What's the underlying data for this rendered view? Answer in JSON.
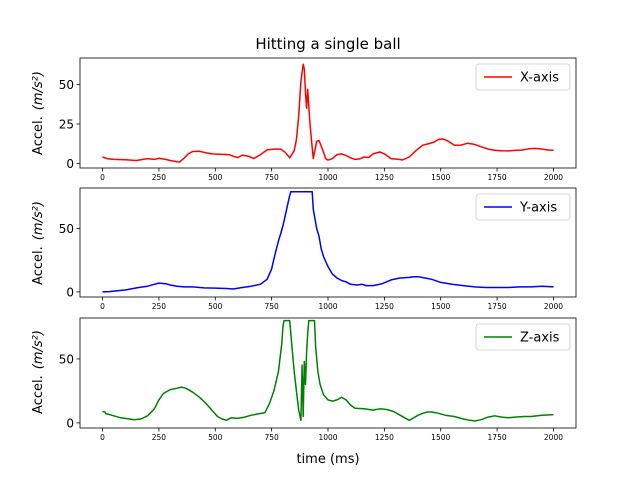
{
  "chart_data": {
    "type": "line",
    "title": "Hitting a single ball",
    "xlabel": "time (ms)",
    "x_ticks": [
      0,
      250,
      500,
      750,
      1000,
      1250,
      1500,
      1750,
      2000
    ],
    "subplots": [
      {
        "ylabel_main": "Accel.",
        "ylabel_unit": "(m/s²)",
        "ylim": [
          -3,
          67
        ],
        "y_ticks": [
          0,
          25,
          50
        ],
        "legend": "upper right",
        "series": [
          {
            "name": "X-axis",
            "color": "#ff0000",
            "points": [
              [
                0,
                4
              ],
              [
                20,
                3
              ],
              [
                50,
                2.5
              ],
              [
                100,
                2.3
              ],
              [
                150,
                1.8
              ],
              [
                200,
                3
              ],
              [
                230,
                2.5
              ],
              [
                250,
                3.2
              ],
              [
                280,
                2.5
              ],
              [
                300,
                1.8
              ],
              [
                330,
                1
              ],
              [
                340,
                0.7
              ],
              [
                360,
                3
              ],
              [
                380,
                6
              ],
              [
                400,
                7.5
              ],
              [
                430,
                7.6
              ],
              [
                460,
                6.6
              ],
              [
                490,
                5.9
              ],
              [
                520,
                5.7
              ],
              [
                560,
                5.5
              ],
              [
                580,
                4.5
              ],
              [
                600,
                3.6
              ],
              [
                620,
                5.2
              ],
              [
                650,
                4.4
              ],
              [
                670,
                3
              ],
              [
                700,
                5.5
              ],
              [
                730,
                8.5
              ],
              [
                760,
                9
              ],
              [
                790,
                9
              ],
              [
                810,
                7
              ],
              [
                830,
                3.5
              ],
              [
                850,
                8
              ],
              [
                860,
                15
              ],
              [
                870,
                30
              ],
              [
                880,
                52
              ],
              [
                890,
                63
              ],
              [
                895,
                60
              ],
              [
                900,
                45
              ],
              [
                905,
                35
              ],
              [
                910,
                47
              ],
              [
                920,
                25
              ],
              [
                930,
                10
              ],
              [
                935,
                3
              ],
              [
                940,
                7
              ],
              [
                950,
                14
              ],
              [
                960,
                14.5
              ],
              [
                970,
                11
              ],
              [
                980,
                7
              ],
              [
                990,
                3
              ],
              [
                1000,
                2
              ],
              [
                1020,
                3
              ],
              [
                1040,
                5.5
              ],
              [
                1060,
                6
              ],
              [
                1080,
                5
              ],
              [
                1100,
                3.5
              ],
              [
                1120,
                2.5
              ],
              [
                1140,
                2.8
              ],
              [
                1160,
                4
              ],
              [
                1180,
                3.6
              ],
              [
                1200,
                6
              ],
              [
                1230,
                7.2
              ],
              [
                1250,
                6
              ],
              [
                1280,
                3
              ],
              [
                1300,
                2.7
              ],
              [
                1320,
                2.4
              ],
              [
                1330,
                2.1
              ],
              [
                1360,
                4
              ],
              [
                1390,
                8
              ],
              [
                1420,
                11.5
              ],
              [
                1450,
                12.6
              ],
              [
                1470,
                13.5
              ],
              [
                1490,
                15.2
              ],
              [
                1510,
                15.5
              ],
              [
                1530,
                14.3
              ],
              [
                1560,
                11.5
              ],
              [
                1590,
                11.6
              ],
              [
                1620,
                12.8
              ],
              [
                1650,
                12
              ],
              [
                1680,
                10.5
              ],
              [
                1710,
                9
              ],
              [
                1740,
                8.3
              ],
              [
                1770,
                8
              ],
              [
                1800,
                7.9
              ],
              [
                1830,
                8.2
              ],
              [
                1860,
                8.4
              ],
              [
                1890,
                9.2
              ],
              [
                1920,
                9.5
              ],
              [
                1950,
                9
              ],
              [
                1980,
                8.4
              ],
              [
                2000,
                8.3
              ]
            ]
          }
        ]
      },
      {
        "ylabel_main": "Accel.",
        "ylabel_unit": "(m/s²)",
        "ylim": [
          -4,
          82
        ],
        "y_ticks": [
          0,
          50
        ],
        "legend": "upper right",
        "series": [
          {
            "name": "Y-axis",
            "color": "#0000ff",
            "points": [
              [
                0,
                0
              ],
              [
                30,
                0.3
              ],
              [
                60,
                0.8
              ],
              [
                100,
                1.5
              ],
              [
                130,
                2.5
              ],
              [
                160,
                3.5
              ],
              [
                200,
                4.5
              ],
              [
                230,
                6
              ],
              [
                250,
                7
              ],
              [
                280,
                6.5
              ],
              [
                300,
                5.5
              ],
              [
                330,
                4.5
              ],
              [
                360,
                4
              ],
              [
                400,
                4
              ],
              [
                450,
                3.2
              ],
              [
                500,
                3
              ],
              [
                550,
                2.7
              ],
              [
                580,
                2.3
              ],
              [
                620,
                3.5
              ],
              [
                660,
                4.5
              ],
              [
                700,
                6
              ],
              [
                730,
                10
              ],
              [
                750,
                18
              ],
              [
                760,
                26
              ],
              [
                770,
                33
              ],
              [
                780,
                40
              ],
              [
                790,
                46
              ],
              [
                800,
                52
              ],
              [
                810,
                60
              ],
              [
                820,
                68
              ],
              [
                830,
                76
              ],
              [
                835,
                79
              ],
              [
                930,
                79
              ],
              [
                935,
                65
              ],
              [
                945,
                55
              ],
              [
                950,
                50
              ],
              [
                960,
                44
              ],
              [
                970,
                34
              ],
              [
                980,
                28
              ],
              [
                990,
                24
              ],
              [
                1000,
                20
              ],
              [
                1020,
                14
              ],
              [
                1040,
                11
              ],
              [
                1060,
                9
              ],
              [
                1080,
                8
              ],
              [
                1100,
                6
              ],
              [
                1130,
                5.5
              ],
              [
                1150,
                6
              ],
              [
                1170,
                5
              ],
              [
                1200,
                5
              ],
              [
                1240,
                6.5
              ],
              [
                1280,
                9.5
              ],
              [
                1320,
                11
              ],
              [
                1360,
                11.5
              ],
              [
                1380,
                12
              ],
              [
                1400,
                12
              ],
              [
                1430,
                11
              ],
              [
                1460,
                10
              ],
              [
                1500,
                7.5
              ],
              [
                1550,
                6
              ],
              [
                1600,
                5
              ],
              [
                1650,
                4
              ],
              [
                1700,
                3.5
              ],
              [
                1750,
                3.5
              ],
              [
                1800,
                3.5
              ],
              [
                1850,
                4
              ],
              [
                1900,
                4
              ],
              [
                1950,
                4.5
              ],
              [
                2000,
                4
              ]
            ]
          }
        ]
      },
      {
        "ylabel_main": "Accel.",
        "ylabel_unit": "(m/s²)",
        "ylim": [
          -4,
          82
        ],
        "y_ticks": [
          0,
          50
        ],
        "legend": "upper right",
        "series": [
          {
            "name": "Z-axis",
            "color": "#008000",
            "points": [
              [
                0,
                9
              ],
              [
                10,
                8.5
              ],
              [
                15,
                7
              ],
              [
                20,
                7
              ],
              [
                40,
                6
              ],
              [
                80,
                4
              ],
              [
                120,
                3
              ],
              [
                140,
                2.5
              ],
              [
                170,
                3
              ],
              [
                200,
                5.5
              ],
              [
                230,
                11
              ],
              [
                250,
                18
              ],
              [
                270,
                23
              ],
              [
                300,
                26
              ],
              [
                330,
                27
              ],
              [
                350,
                28
              ],
              [
                370,
                27
              ],
              [
                400,
                24
              ],
              [
                430,
                20
              ],
              [
                460,
                15
              ],
              [
                490,
                9
              ],
              [
                510,
                5
              ],
              [
                530,
                3
              ],
              [
                550,
                2
              ],
              [
                570,
                4
              ],
              [
                600,
                3.5
              ],
              [
                630,
                4.5
              ],
              [
                660,
                6
              ],
              [
                690,
                7
              ],
              [
                720,
                8
              ],
              [
                740,
                15
              ],
              [
                760,
                25
              ],
              [
                780,
                40
              ],
              [
                790,
                55
              ],
              [
                795,
                62
              ],
              [
                800,
                75
              ],
              [
                805,
                80
              ],
              [
                830,
                80
              ],
              [
                840,
                60
              ],
              [
                850,
                40
              ],
              [
                860,
                25
              ],
              [
                870,
                10
              ],
              [
                880,
                2
              ],
              [
                885,
                45
              ],
              [
                890,
                5
              ],
              [
                895,
                48
              ],
              [
                900,
                30
              ],
              [
                905,
                55
              ],
              [
                910,
                70
              ],
              [
                915,
                80
              ],
              [
                940,
                80
              ],
              [
                945,
                60
              ],
              [
                955,
                40
              ],
              [
                965,
                30
              ],
              [
                980,
                22
              ],
              [
                1000,
                18
              ],
              [
                1020,
                17
              ],
              [
                1040,
                18
              ],
              [
                1060,
                20
              ],
              [
                1080,
                18
              ],
              [
                1100,
                14
              ],
              [
                1120,
                11.5
              ],
              [
                1160,
                11
              ],
              [
                1200,
                10
              ],
              [
                1230,
                11
              ],
              [
                1260,
                10.5
              ],
              [
                1290,
                9
              ],
              [
                1320,
                6
              ],
              [
                1340,
                4
              ],
              [
                1360,
                2
              ],
              [
                1380,
                4
              ],
              [
                1400,
                6
              ],
              [
                1420,
                7.5
              ],
              [
                1440,
                8.5
              ],
              [
                1460,
                8.5
              ],
              [
                1490,
                7.5
              ],
              [
                1520,
                6
              ],
              [
                1560,
                5
              ],
              [
                1600,
                3
              ],
              [
                1630,
                2
              ],
              [
                1650,
                1.5
              ],
              [
                1680,
                2.5
              ],
              [
                1710,
                4.5
              ],
              [
                1740,
                5.5
              ],
              [
                1770,
                4.5
              ],
              [
                1800,
                4
              ],
              [
                1830,
                4.5
              ],
              [
                1870,
                5
              ],
              [
                1900,
                5
              ],
              [
                1950,
                6
              ],
              [
                2000,
                6.5
              ]
            ]
          }
        ]
      }
    ]
  }
}
